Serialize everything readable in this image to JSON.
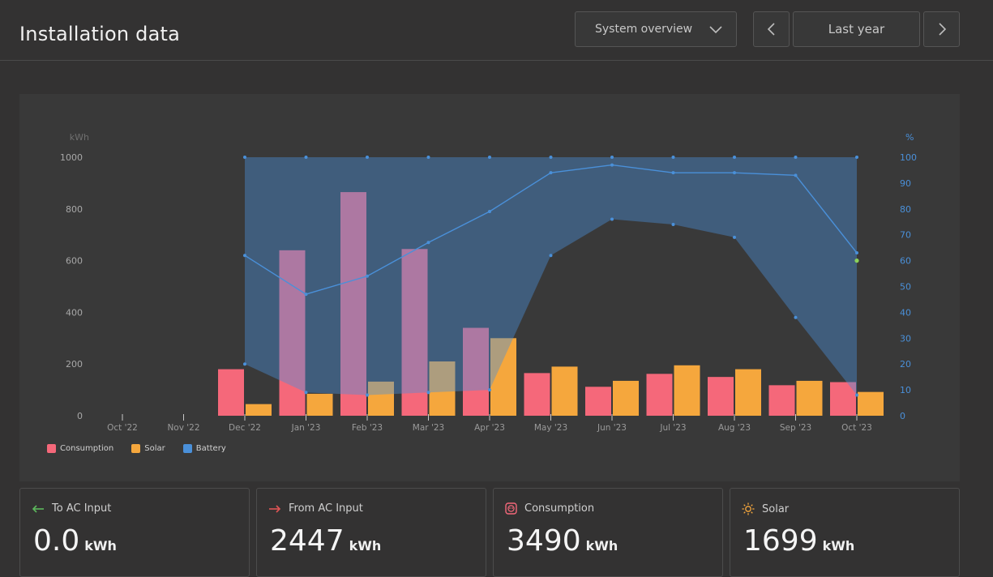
{
  "header": {
    "title": "Installation data",
    "view_select": "System overview",
    "period": "Last year",
    "prev_icon": "chevron-left-icon",
    "next_icon": "chevron-right-icon"
  },
  "chart_data": {
    "type": "bar",
    "categories": [
      "Oct '22",
      "Nov '22",
      "Dec '22",
      "Jan '23",
      "Feb '23",
      "Mar '23",
      "Apr '23",
      "May '23",
      "Jun '23",
      "Jul '23",
      "Aug '23",
      "Sep '23",
      "Oct '23"
    ],
    "y_left": {
      "label": "kWh",
      "ticks": [
        0,
        200,
        400,
        600,
        800,
        1000
      ],
      "ylim": [
        0,
        1000
      ]
    },
    "y_right": {
      "label": "%",
      "ticks": [
        0,
        10,
        20,
        30,
        40,
        50,
        60,
        70,
        80,
        90,
        100
      ],
      "ylim": [
        0,
        100
      ]
    },
    "series": [
      {
        "name": "Consumption",
        "color": "#f5687a",
        "type": "bar",
        "values": [
          0,
          0,
          180,
          640,
          865,
          645,
          340,
          165,
          112,
          162,
          150,
          118,
          130
        ]
      },
      {
        "name": "Solar",
        "color": "#f5a73d",
        "type": "bar",
        "values": [
          0,
          0,
          45,
          85,
          132,
          210,
          300,
          190,
          135,
          195,
          180,
          135,
          92
        ]
      },
      {
        "name": "Battery",
        "color": "#4a90d9",
        "type": "area",
        "max": [
          null,
          null,
          100,
          100,
          100,
          100,
          100,
          100,
          100,
          100,
          100,
          100,
          100
        ],
        "min": [
          null,
          null,
          20,
          9,
          8,
          9,
          10,
          62,
          76,
          74,
          69,
          38,
          8
        ],
        "avg": [
          null,
          null,
          62,
          47,
          54,
          67,
          79,
          94,
          97,
          94,
          94,
          93,
          63
        ],
        "current_value": 60
      }
    ],
    "legend_position": "bottom-left",
    "grid": false
  },
  "cards": [
    {
      "label": "To AC Input",
      "value": "0.0",
      "unit": "kWh",
      "icon": "arrow-left-icon",
      "icon_color": "#5cb85c"
    },
    {
      "label": "From AC Input",
      "value": "2447",
      "unit": "kWh",
      "icon": "arrow-right-icon",
      "icon_color": "#e05555"
    },
    {
      "label": "Consumption",
      "value": "3490",
      "unit": "kWh",
      "icon": "outlet-icon",
      "icon_color": "#f5687a"
    },
    {
      "label": "Solar",
      "value": "1699",
      "unit": "kWh",
      "icon": "sun-icon",
      "icon_color": "#f5a73d"
    }
  ]
}
